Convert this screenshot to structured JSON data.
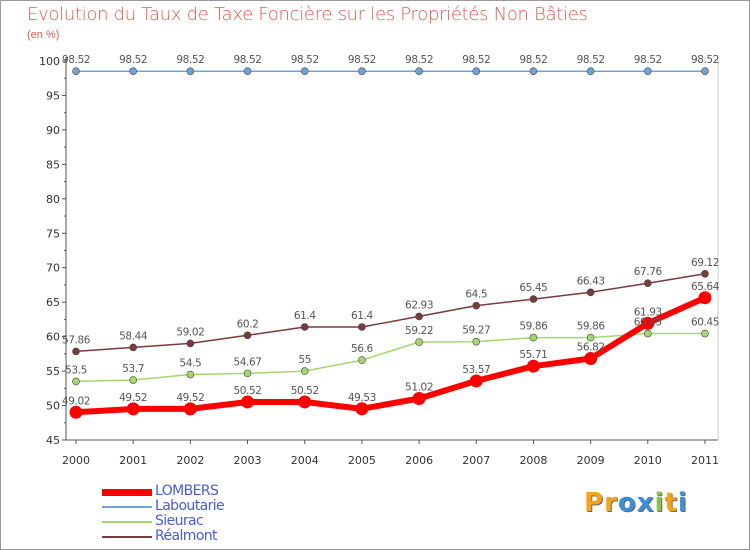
{
  "title": "Evolution du Taux de Taxe Foncière sur les Propriétés Non Bâties",
  "subtitle": "(en %)",
  "logo": {
    "text": "Proxiti",
    "colors": [
      "#f4a419",
      "#f4a419",
      "#3a8fd8",
      "#3a8fd8",
      "#8bc34a",
      "#f4a419",
      "#3a8fd8"
    ]
  },
  "chart_data": {
    "type": "line",
    "title": "Evolution du Taux de Taxe Foncière sur les Propriétés Non Bâties",
    "ylabel": "(en %)",
    "xlabel": "",
    "ylim": [
      45,
      100
    ],
    "yticks": [
      45,
      50,
      55,
      60,
      65,
      70,
      75,
      80,
      85,
      90,
      95,
      100
    ],
    "categories": [
      "2000",
      "2001",
      "2002",
      "2003",
      "2004",
      "2005",
      "2006",
      "2007",
      "2008",
      "2009",
      "2010",
      "2011"
    ],
    "series": [
      {
        "name": "LOMBERS",
        "color": "#ff0000",
        "values": [
          49.02,
          49.52,
          49.52,
          50.52,
          50.52,
          49.53,
          51.02,
          53.57,
          55.71,
          56.82,
          61.93,
          65.64
        ],
        "labels": [
          "49.02",
          "49.52",
          "49.52",
          "50.52",
          "50.52",
          "49.53",
          "51.02",
          "53.57",
          "55.71",
          "56.82",
          "61.93",
          "65.64"
        ]
      },
      {
        "name": "Laboutarie",
        "color": "#6fa3d4",
        "values": [
          98.52,
          98.52,
          98.52,
          98.52,
          98.52,
          98.52,
          98.52,
          98.52,
          98.52,
          98.52,
          98.52,
          98.52
        ],
        "labels": [
          "98.52",
          "98.52",
          "98.52",
          "98.52",
          "98.52",
          "98.52",
          "98.52",
          "98.52",
          "98.52",
          "98.52",
          "98.52",
          "98.52"
        ]
      },
      {
        "name": "Sieurac",
        "color": "#a4d86e",
        "values": [
          53.5,
          53.7,
          54.5,
          54.67,
          55,
          56.6,
          59.22,
          59.27,
          59.86,
          59.86,
          60.45,
          60.45
        ],
        "labels": [
          "53.5",
          "53.7",
          "54.5",
          "54.67",
          "55",
          "56.6",
          "59.22",
          "59.27",
          "59.86",
          "59.86",
          "60.45",
          "60.45"
        ]
      },
      {
        "name": "Réalmont",
        "color": "#7a3b3b",
        "values": [
          57.86,
          58.44,
          59.02,
          60.2,
          61.4,
          61.4,
          62.93,
          64.5,
          65.45,
          66.43,
          67.76,
          69.12
        ],
        "labels": [
          "57.86",
          "58.44",
          "59.02",
          "60.2",
          "61.4",
          "61.4",
          "62.93",
          "64.5",
          "65.45",
          "66.43",
          "67.76",
          "69.12"
        ]
      }
    ]
  }
}
